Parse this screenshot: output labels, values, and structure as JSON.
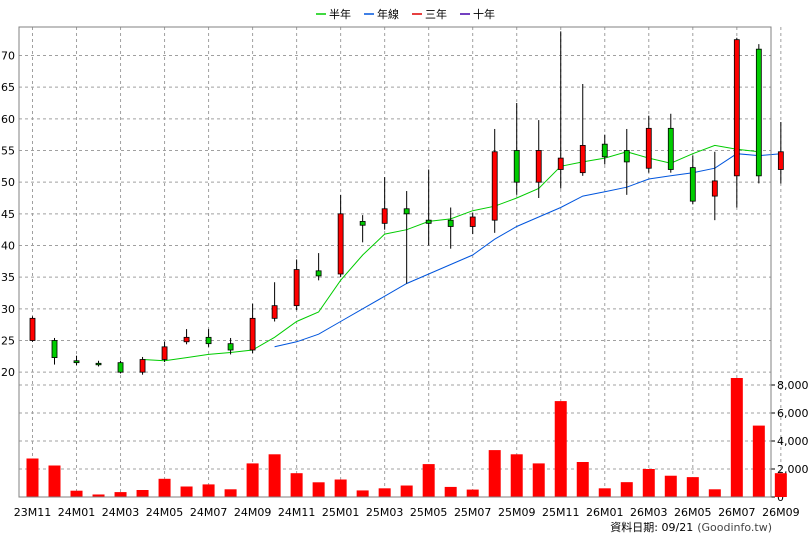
{
  "chart_data": {
    "type": "candlestick+bar",
    "legend": [
      {
        "name": "半年",
        "color": "#00cc00"
      },
      {
        "name": "年線",
        "color": "#0055dd"
      },
      {
        "name": "三年",
        "color": "#dd0000"
      },
      {
        "name": "十年",
        "color": "#4400aa"
      }
    ],
    "legend_position": "top-center",
    "grid": true,
    "x_tick_labels": [
      "23M11",
      "24M01",
      "24M03",
      "24M05",
      "24M07",
      "24M09",
      "24M11",
      "25M01",
      "25M03",
      "25M05",
      "25M07",
      "25M09",
      "25M11",
      "26M01",
      "26M03",
      "26M05",
      "26M07",
      "26M09"
    ],
    "price_axis": {
      "ticks": [
        20,
        25,
        30,
        35,
        40,
        45,
        50,
        55,
        60,
        65,
        70
      ],
      "ylim": [
        19,
        74.5
      ]
    },
    "volume_axis": {
      "ticks": [
        0,
        2000,
        4000,
        6000,
        8000
      ],
      "tick_labels": [
        "0",
        "2,000",
        "4,000",
        "6,000",
        "8,000"
      ],
      "ylim": [
        0,
        8500
      ]
    },
    "candles": [
      {
        "o": 25,
        "c": 28.5,
        "h": 28.8,
        "l": 24.8
      },
      {
        "o": 25,
        "c": 22.3,
        "h": 25.4,
        "l": 21.2
      },
      {
        "o": 21.8,
        "c": 21.5,
        "h": 22.6,
        "l": 21.1
      },
      {
        "o": 21.4,
        "c": 21.3,
        "h": 21.8,
        "l": 20.9
      },
      {
        "o": 21.5,
        "c": 20,
        "h": 21.8,
        "l": 19.8
      },
      {
        "o": 20,
        "c": 22,
        "h": 22.4,
        "l": 19.6
      },
      {
        "o": 22,
        "c": 24,
        "h": 24.8,
        "l": 21.6
      },
      {
        "o": 24.8,
        "c": 25.5,
        "h": 26.8,
        "l": 24.4
      },
      {
        "o": 25.5,
        "c": 24.5,
        "h": 26.8,
        "l": 24
      },
      {
        "o": 24.5,
        "c": 23.5,
        "h": 25.4,
        "l": 22.8
      },
      {
        "o": 23.5,
        "c": 28.5,
        "h": 30.8,
        "l": 23
      },
      {
        "o": 28.5,
        "c": 30.5,
        "h": 34.2,
        "l": 28
      },
      {
        "o": 30.5,
        "c": 36.2,
        "h": 37.8,
        "l": 29.8
      },
      {
        "o": 36,
        "c": 35.2,
        "h": 38.8,
        "l": 34.5
      },
      {
        "o": 35.5,
        "c": 45,
        "h": 48,
        "l": 35
      },
      {
        "o": 43.8,
        "c": 43.2,
        "h": 44.8,
        "l": 40.5
      },
      {
        "o": 43.5,
        "c": 45.8,
        "h": 50.8,
        "l": 42.5
      },
      {
        "o": 45.8,
        "c": 45,
        "h": 48.6,
        "l": 34
      },
      {
        "o": 44,
        "c": 43.5,
        "h": 52,
        "l": 40
      },
      {
        "o": 44,
        "c": 43,
        "h": 46,
        "l": 39.5
      },
      {
        "o": 43,
        "c": 44.5,
        "h": 45.2,
        "l": 41.8
      },
      {
        "o": 44,
        "c": 54.8,
        "h": 58.4,
        "l": 42
      },
      {
        "o": 55,
        "c": 50,
        "h": 62.5,
        "l": 48
      },
      {
        "o": 50,
        "c": 55,
        "h": 59.8,
        "l": 47.5
      },
      {
        "o": 52,
        "c": 53.8,
        "h": 73.8,
        "l": 49
      },
      {
        "o": 51.5,
        "c": 55.8,
        "h": 65.5,
        "l": 51
      },
      {
        "o": 56,
        "c": 54,
        "h": 57.5,
        "l": 52.8
      },
      {
        "o": 55,
        "c": 53.2,
        "h": 58.4,
        "l": 48
      },
      {
        "o": 52.2,
        "c": 58.5,
        "h": 60.5,
        "l": 51.5
      },
      {
        "o": 58.5,
        "c": 52,
        "h": 60.8,
        "l": 51.5
      },
      {
        "o": 52.3,
        "c": 47,
        "h": 54.2,
        "l": 46.5
      },
      {
        "o": 47.8,
        "c": 50.2,
        "h": 54.8,
        "l": 44
      },
      {
        "o": 51,
        "c": 72.5,
        "h": 72.8,
        "l": 46
      },
      {
        "o": 71,
        "c": 51,
        "h": 71.8,
        "l": 49.8
      },
      {
        "o": 52,
        "c": 54.8,
        "h": 59.5,
        "l": 49.8
      }
    ],
    "series": [
      {
        "name": "半年",
        "start_index": 5,
        "values": [
          22,
          21.8,
          22.3,
          22.8,
          23.1,
          23.5,
          25.5,
          28,
          29.5,
          34.5,
          38.5,
          41.8,
          42.5,
          43.8,
          44.2,
          45.5,
          46.2,
          47.5,
          49,
          52.5,
          53.2,
          53.8,
          54.8,
          53.8,
          53,
          54.5,
          55.8,
          55.2,
          54.8
        ]
      },
      {
        "name": "年線",
        "start_index": 11,
        "values": [
          24,
          24.8,
          26,
          28,
          30,
          32,
          34,
          35.5,
          37,
          38.5,
          41,
          43,
          44.5,
          46,
          47.8,
          48.5,
          49.2,
          50.5,
          51,
          51.5,
          52.2,
          54.5,
          54.2,
          54.5
        ]
      }
    ],
    "volume": [
      2750,
      2250,
      450,
      180,
      350,
      500,
      1300,
      750,
      900,
      550,
      2400,
      3050,
      1700,
      1050,
      1250,
      470,
      620,
      820,
      2350,
      720,
      530,
      3350,
      3050,
      2400,
      6850,
      2500,
      620,
      1060,
      2000,
      1520,
      1420,
      550,
      8500,
      5100,
      1700
    ]
  },
  "footer": {
    "date_label": "資料日期: 09/21",
    "source": "(Goodinfo.tw)"
  }
}
